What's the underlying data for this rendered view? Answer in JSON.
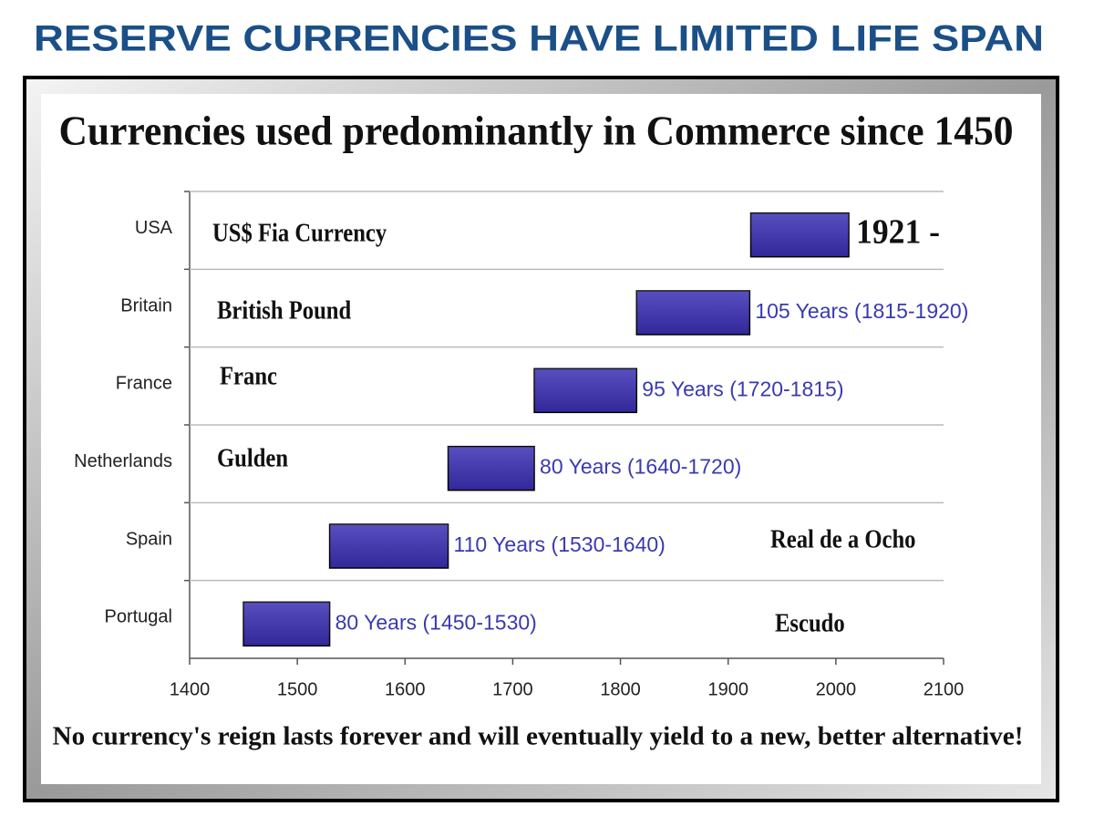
{
  "header": {
    "title": "RESERVE CURRENCIES HAVE LIMITED LIFE SPAN"
  },
  "chart_data": {
    "type": "range-bar",
    "title": "Currencies used predominantly in Commerce since 1450",
    "footer": "No currency's reign lasts forever and will eventually yield to a new, better alternative!",
    "categories": [
      "USA",
      "Britain",
      "France",
      "Netherlands",
      "Spain",
      "Portugal"
    ],
    "currencies": [
      "US$ Fia Currency",
      "British Pound",
      "Franc",
      "Gulden",
      "Real de a Ocho",
      "Escudo"
    ],
    "starts": [
      1921,
      1815,
      1720,
      1640,
      1530,
      1450
    ],
    "ends": [
      2012,
      1920,
      1815,
      1720,
      1640,
      1530
    ],
    "value_labels": [
      "1921 -",
      "105 Years (1815-1920)",
      "95 Years (1720-1815)",
      "80 Years (1640-1720)",
      "110 Years (1530-1640)",
      "80 Years (1450-1530)"
    ],
    "color": "#3b2fb5",
    "label_color": "#3a3ab0",
    "xlim": [
      1400,
      2100
    ],
    "xticks": [
      1400,
      1500,
      1600,
      1700,
      1800,
      1900,
      2000,
      2100
    ],
    "grid": true
  }
}
